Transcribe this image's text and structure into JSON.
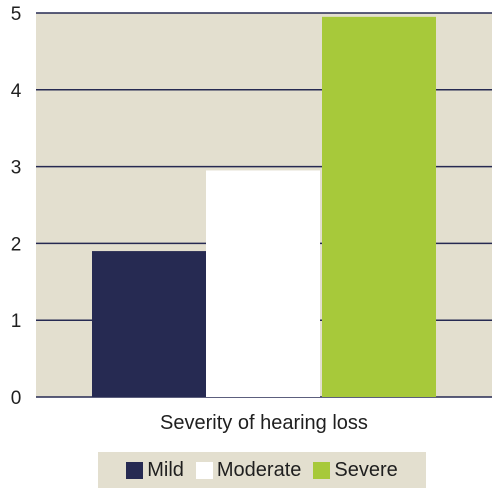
{
  "chart_data": {
    "type": "bar",
    "categories": [
      "Mild",
      "Moderate",
      "Severe"
    ],
    "values": [
      1.9,
      2.95,
      4.95
    ],
    "colors": [
      "#262a52",
      "#ffffff",
      "#a7c93a"
    ],
    "xlabel": "Severity of hearing loss",
    "ylabel": "",
    "ylim": [
      0,
      5
    ],
    "yticks": [
      "0",
      "1",
      "2",
      "3",
      "4",
      "5"
    ],
    "grid": true,
    "legend_position": "bottom",
    "plot_background": "#e3dfcf",
    "gridline_color": "#262a52"
  }
}
